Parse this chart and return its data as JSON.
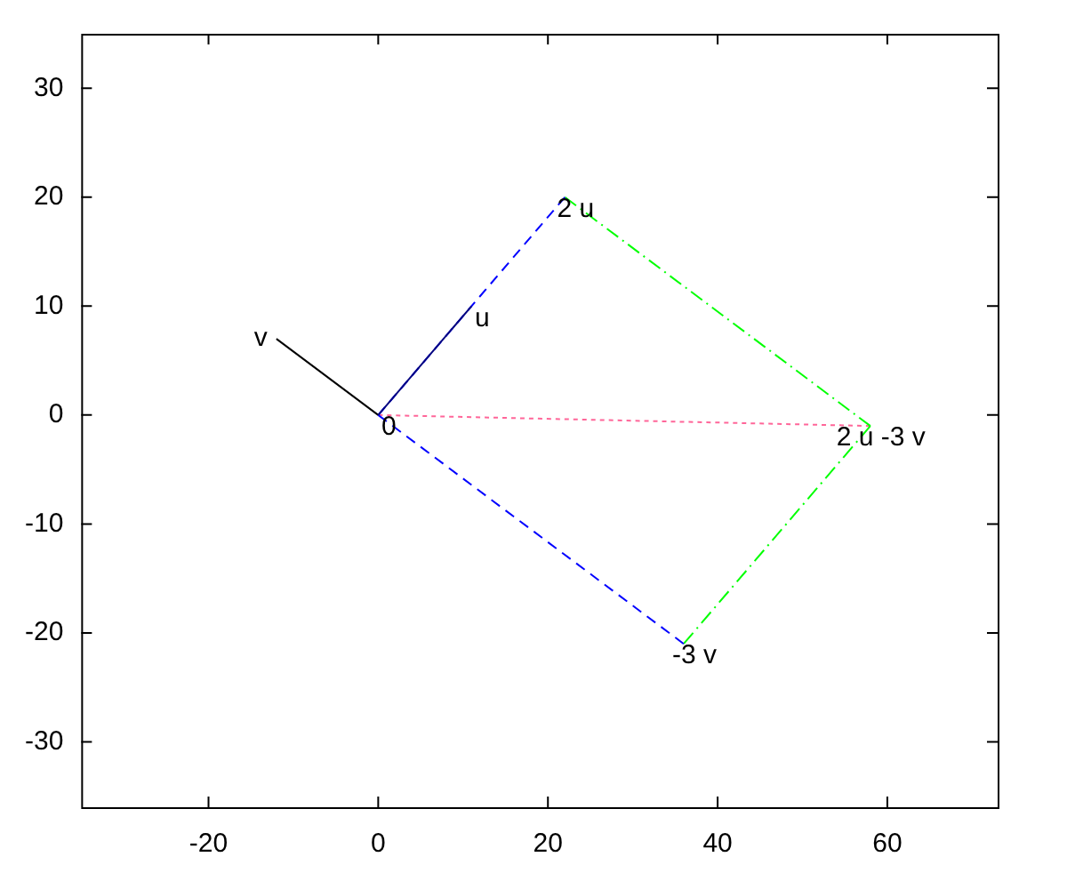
{
  "chart_data": {
    "type": "line",
    "xlim": [
      -35,
      73
    ],
    "ylim": [
      -36,
      35
    ],
    "xticks": [
      -20,
      0,
      20,
      40,
      60
    ],
    "yticks": [
      -30,
      -20,
      -10,
      0,
      10,
      20,
      30
    ],
    "grid": false,
    "legend": false,
    "marker": "none",
    "series": [
      {
        "x": [
          0,
          11
        ],
        "values": [
          0,
          10
        ],
        "color": "#000080",
        "line_style": "solid"
      },
      {
        "x": [
          0,
          -12
        ],
        "values": [
          0,
          7
        ],
        "color": "#000000",
        "line_style": "solid"
      },
      {
        "x": [
          0,
          22
        ],
        "values": [
          0,
          20
        ],
        "color": "#0000ff",
        "line_style": "dashed"
      },
      {
        "x": [
          0,
          36
        ],
        "values": [
          0,
          -21
        ],
        "color": "#0000ff",
        "line_style": "dashed"
      },
      {
        "x": [
          22,
          58
        ],
        "values": [
          20,
          -1
        ],
        "color": "#00ff00",
        "line_style": "dashdot"
      },
      {
        "x": [
          36,
          58
        ],
        "values": [
          -21,
          -1
        ],
        "color": "#00ff00",
        "line_style": "dashdot"
      },
      {
        "x": [
          0,
          58
        ],
        "values": [
          0,
          -1
        ],
        "color": "#ff6699",
        "line_style": "dotted"
      }
    ],
    "annotations": [
      {
        "text": "0",
        "x": 0,
        "y": 0
      },
      {
        "text": "u",
        "x": 11,
        "y": 10
      },
      {
        "text": "v",
        "x": -12,
        "y": 7
      },
      {
        "text": "2 u",
        "x": 22,
        "y": 20
      },
      {
        "text": "-3 v",
        "x": 36,
        "y": -21
      },
      {
        "text": "2 u -3 v",
        "x": 58,
        "y": -1
      }
    ]
  }
}
